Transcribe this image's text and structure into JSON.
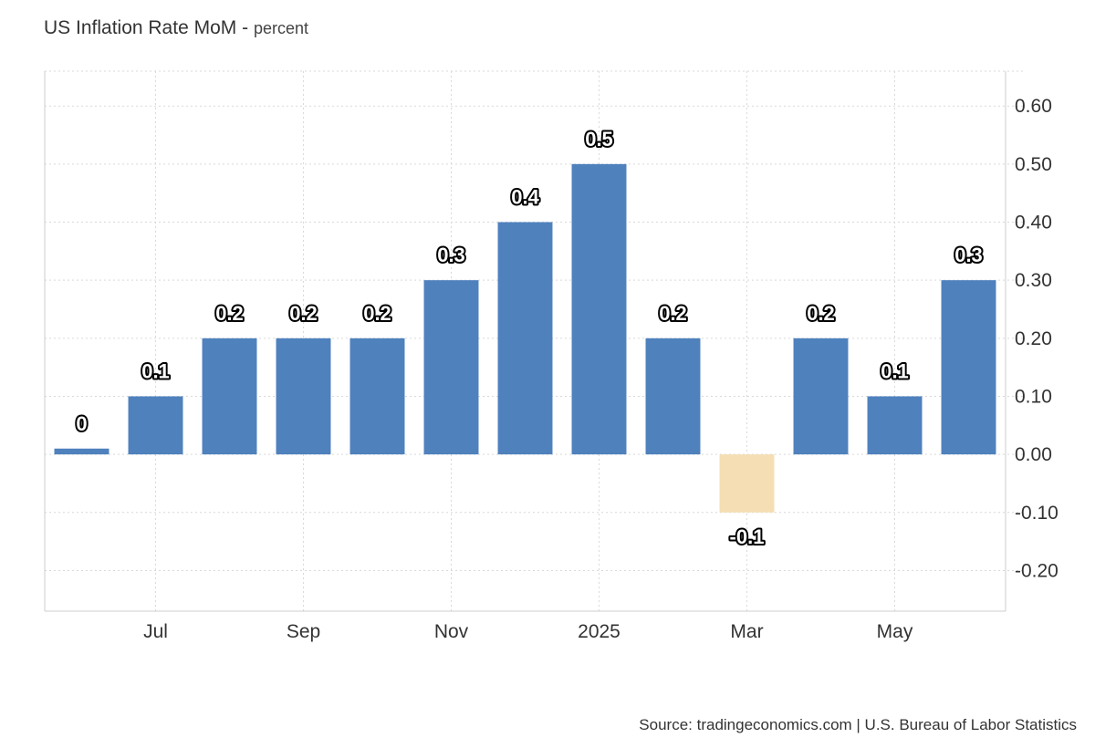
{
  "chart_data": {
    "type": "bar",
    "title": "US Inflation Rate MoM",
    "subtitle": "percent",
    "xlabel": "",
    "ylabel": "",
    "categories": [
      "2024-06",
      "2024-07",
      "2024-08",
      "2024-09",
      "2024-10",
      "2024-11",
      "2024-12",
      "2025-01",
      "2025-02",
      "2025-03",
      "2025-04",
      "2025-05",
      "2025-06"
    ],
    "values": [
      0.01,
      0.1,
      0.2,
      0.2,
      0.2,
      0.3,
      0.4,
      0.5,
      0.2,
      -0.1,
      0.2,
      0.1,
      0.3
    ],
    "data_labels": [
      "0",
      "0.1",
      "0.2",
      "0.2",
      "0.2",
      "0.3",
      "0.4",
      "0.5",
      "0.2",
      "-0.1",
      "0.2",
      "0.1",
      "0.3"
    ],
    "x_ticks": [
      {
        "category": "2024-07",
        "label": "Jul"
      },
      {
        "category": "2024-09",
        "label": "Sep"
      },
      {
        "category": "2024-11",
        "label": "Nov"
      },
      {
        "category": "2025-01",
        "label": "2025"
      },
      {
        "category": "2025-03",
        "label": "Mar"
      },
      {
        "category": "2025-05",
        "label": "May"
      }
    ],
    "y_ticks": [
      0.6,
      0.5,
      0.4,
      0.3,
      0.2,
      0.1,
      0.0,
      -0.1,
      -0.2
    ],
    "y_tick_labels": [
      "0.60",
      "0.50",
      "0.40",
      "0.30",
      "0.20",
      "0.10",
      "0.00",
      "-0.10",
      "-0.20"
    ],
    "ylim": [
      -0.27,
      0.66
    ],
    "grid": true,
    "y_axis_position": "right",
    "legend": "none",
    "colors": {
      "positive": "#4f81bd",
      "negative": "#f5deb3",
      "grid": "#d9d9d9",
      "axis": "#cccccc"
    }
  },
  "source": "Source: tradingeconomics.com | U.S. Bureau of Labor Statistics"
}
